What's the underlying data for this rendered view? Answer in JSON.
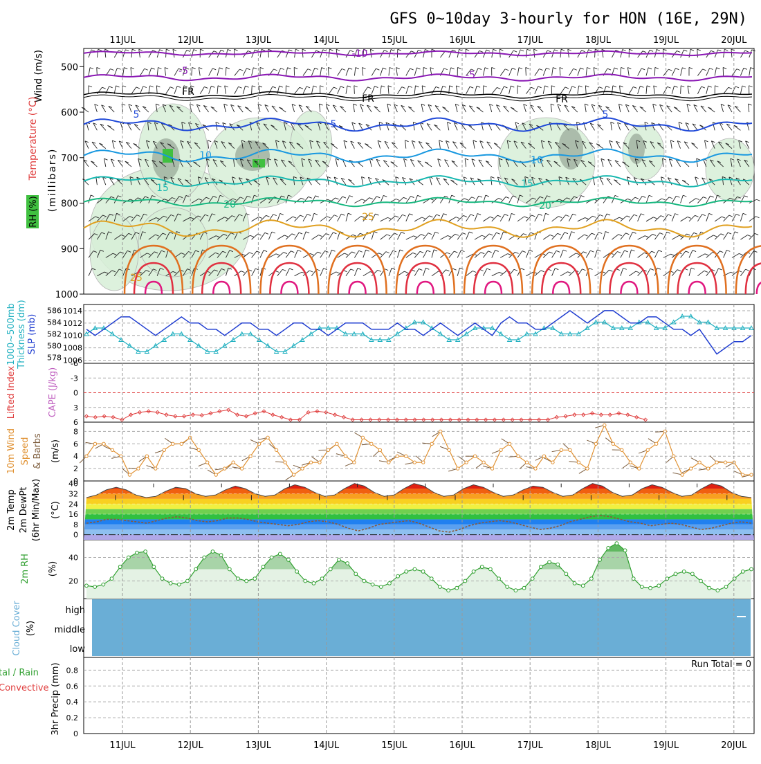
{
  "title": "GFS 0~10day 3-hourly for HON (16E, 29N)",
  "dates": [
    "11JUL",
    "12JUL",
    "13JUL",
    "14JUL",
    "15JUL",
    "16JUL",
    "17JUL",
    "18JUL",
    "19JUL",
    "20JUL"
  ],
  "colors": {
    "t_minus10": "#8a18b4",
    "t_minus5": "#8a18b4",
    "t_fr": "#000000",
    "t_5": "#1e48d8",
    "t_10": "#1898e0",
    "t_15": "#18b8b0",
    "t_20": "#18b880",
    "t_25": "#e0a020",
    "t_30": "#e07020",
    "t_35": "#e03040",
    "t_40": "#e01880",
    "rh_fill": "#d8efd8",
    "slp": "#1e3cd0",
    "thickness": "#20b0c0",
    "lifted": "#e04040",
    "wind10": "#e09030",
    "rh2m": "#30a030",
    "cloud": "#6aaed6"
  },
  "panel1": {
    "ylabel_wind": "Wind (m/s)",
    "ylabel_temp": "Temperature (°C)",
    "ylabel_rh": "RH (%)",
    "ylabel_units": "(millibars)",
    "y_ticks": [
      "500",
      "600",
      "700",
      "800",
      "900",
      "1000"
    ],
    "contour_labels": {
      "minus10": "-10",
      "minus5": "-5",
      "fr": "FR",
      "p5": "5",
      "p10": "10",
      "p15": "15",
      "p20": "20",
      "p25": "25"
    }
  },
  "panel2": {
    "ylabel_thick": "Thickness (dm)",
    "ylabel_1000": "1000~500mb",
    "ylabel_slp": "SLP (mb)",
    "thick_ticks": [
      "586",
      "584",
      "582",
      "580",
      "578"
    ],
    "slp_ticks": [
      "1014",
      "1012",
      "1010",
      "1008",
      "1006"
    ]
  },
  "panel3": {
    "ylabel_li": "Lifted Index",
    "ylabel_cape": "CAPE (J/kg)",
    "y_ticks": [
      "-6",
      "-3",
      "0",
      "3",
      "6"
    ]
  },
  "panel4": {
    "ylabel_1": "10m Wind",
    "ylabel_2": "Speed",
    "ylabel_3": "& Barbs",
    "ylabel_units": "(m/s)",
    "y_ticks": [
      "8",
      "6",
      "4",
      "2",
      "0"
    ]
  },
  "panel5": {
    "ylabel_1": "2m Temp",
    "ylabel_2": "2m DewPt",
    "ylabel_3": "(6hr Min/Max)",
    "ylabel_units": "(°C)",
    "y_ticks": [
      "40",
      "32",
      "24",
      "16",
      "8",
      "0"
    ]
  },
  "panel6": {
    "ylabel_1": "2m RH",
    "ylabel_units": "(%)",
    "y_ticks": [
      "40",
      "20"
    ]
  },
  "panel7": {
    "ylabel_1": "Cloud Cover",
    "ylabel_units": "(%)",
    "levels": [
      "high",
      "middle",
      "low"
    ]
  },
  "panel8": {
    "ylabel_1": "tal / Rain",
    "ylabel_2": "Convective",
    "ylabel_3": "3hr Precip (mm)",
    "run_total": "Run Total = 0",
    "y_ticks": [
      "0.8",
      "0.6",
      "0.4",
      "0.2",
      "0"
    ]
  },
  "chart_data": [
    {
      "type": "line",
      "title": "GFS 0~10day 3-hourly for HON (16E, 29N)",
      "xlabel": "",
      "x_ticks": [
        "11JUL",
        "12JUL",
        "13JUL",
        "14JUL",
        "15JUL",
        "16JUL",
        "17JUL",
        "18JUL",
        "19JUL",
        "20JUL"
      ],
      "series": [
        {
          "name": "SLP (mb)",
          "values": [
            1011,
            1010,
            1011,
            1012,
            1013,
            1013,
            1012,
            1011,
            1010,
            1011,
            1012,
            1013,
            1012,
            1012,
            1011,
            1011,
            1010,
            1011,
            1012,
            1012,
            1011,
            1011,
            1010,
            1011,
            1012,
            1012,
            1011,
            1011,
            1010,
            1011,
            1012,
            1012,
            1012,
            1011,
            1011,
            1011,
            1012,
            1011,
            1011,
            1010,
            1011,
            1012,
            1011,
            1010,
            1011,
            1012,
            1011,
            1010,
            1012,
            1013,
            1012,
            1012,
            1011,
            1011,
            1012,
            1013,
            1014,
            1013,
            1012,
            1013,
            1014,
            1014,
            1013,
            1012,
            1012,
            1013,
            1013,
            1012,
            1011,
            1011,
            1010,
            1011,
            1009,
            1007,
            1008,
            1009,
            1009,
            1010
          ]
        },
        {
          "name": "Thickness (dm)",
          "values": [
            582,
            583,
            583,
            582,
            581,
            580,
            579,
            579,
            580,
            581,
            582,
            582,
            581,
            580,
            579,
            579,
            580,
            581,
            582,
            582,
            581,
            580,
            579,
            579,
            580,
            581,
            582,
            583,
            583,
            583,
            582,
            582,
            582,
            581,
            581,
            581,
            582,
            583,
            584,
            584,
            583,
            582,
            581,
            581,
            582,
            583,
            583,
            583,
            582,
            581,
            581,
            582,
            582,
            583,
            583,
            582,
            582,
            582,
            583,
            584,
            584,
            583,
            583,
            583,
            584,
            584,
            583,
            583,
            584,
            585,
            585,
            584,
            584,
            583,
            583,
            583,
            583,
            583
          ]
        },
        {
          "name": "Lifted Index",
          "values": [
            4.8,
            5,
            4.8,
            5,
            5.5,
            4.5,
            4,
            3.8,
            4,
            4.5,
            4.8,
            4.8,
            4.5,
            4.6,
            4.2,
            3.8,
            3.5,
            4.5,
            4.8,
            4.2,
            3.8,
            4.5,
            5,
            5.5,
            5.5,
            4,
            3.8,
            4,
            4.5,
            5,
            5.5,
            5.5,
            5.5,
            5.5,
            5.5,
            5.5,
            5.5,
            5.5,
            5.5,
            5.5,
            5.5,
            5.5,
            5.5,
            5.5,
            5.5,
            5.5,
            5.5,
            5.5,
            5.5,
            5.5,
            5.5,
            5.5,
            5.5,
            5,
            4.8,
            4.5,
            4.5,
            4.2,
            4.5,
            4.5,
            4.2,
            4.5,
            5,
            5.5
          ]
        },
        {
          "name": "10m Wind Speed (m/s)",
          "values": [
            4,
            6,
            6,
            5,
            4,
            1,
            2,
            4,
            2,
            5,
            6,
            6,
            7,
            5,
            3,
            1,
            2,
            3,
            2,
            4,
            6,
            7,
            5,
            3,
            1,
            2,
            3,
            3,
            5,
            6,
            4,
            3,
            7,
            6,
            5,
            3,
            4,
            4,
            3,
            3,
            6,
            8,
            5,
            2,
            3,
            4,
            3,
            2,
            5,
            6,
            4,
            3,
            2,
            4,
            3,
            5,
            5,
            3,
            2,
            6,
            9,
            6,
            5,
            3,
            2,
            5,
            6,
            8,
            4,
            1,
            2,
            3,
            2,
            3,
            3,
            3,
            1,
            1
          ]
        },
        {
          "name": "2m Temp (°C)",
          "values": [
            29,
            31,
            35,
            37,
            35,
            31,
            29,
            30,
            34,
            37,
            36,
            32,
            30,
            31,
            35,
            38,
            36,
            32,
            30,
            31,
            36,
            39,
            37,
            33,
            30,
            31,
            36,
            40,
            38,
            33,
            30,
            31,
            36,
            40,
            38,
            33,
            30,
            31,
            36,
            39,
            37,
            33,
            30,
            31,
            35,
            38,
            37,
            33,
            30,
            31,
            36,
            40,
            38,
            33,
            30,
            31,
            36,
            39,
            37,
            33,
            30,
            31,
            36,
            40,
            38,
            33,
            30,
            29
          ]
        },
        {
          "name": "2m DewPt (°C)",
          "values": [
            9,
            10,
            12,
            12,
            11,
            10,
            9,
            11,
            13,
            14,
            13,
            11,
            10,
            11,
            13,
            13,
            12,
            10,
            9,
            8,
            7,
            8,
            10,
            11,
            10,
            8,
            5,
            3,
            5,
            8,
            9,
            10,
            11,
            9,
            6,
            3,
            2,
            4,
            7,
            9,
            10,
            11,
            10,
            8,
            6,
            4,
            5,
            7,
            10,
            12,
            14,
            15,
            14,
            12,
            10,
            9,
            7,
            8,
            9,
            8,
            6,
            4,
            5,
            7,
            9,
            10,
            9
          ]
        },
        {
          "name": "2m RH (%)",
          "values": [
            16,
            15,
            17,
            22,
            32,
            40,
            44,
            45,
            32,
            22,
            18,
            17,
            20,
            30,
            40,
            45,
            42,
            30,
            22,
            20,
            22,
            32,
            40,
            43,
            38,
            28,
            20,
            18,
            22,
            30,
            38,
            35,
            26,
            20,
            17,
            15,
            18,
            24,
            28,
            30,
            28,
            22,
            15,
            12,
            14,
            20,
            28,
            32,
            30,
            22,
            15,
            12,
            14,
            22,
            32,
            36,
            34,
            26,
            18,
            16,
            22,
            38,
            48,
            52,
            46,
            22,
            15,
            14,
            16,
            22,
            26,
            28,
            26,
            20,
            14,
            12,
            15,
            22,
            28,
            30
          ]
        }
      ]
    }
  ]
}
